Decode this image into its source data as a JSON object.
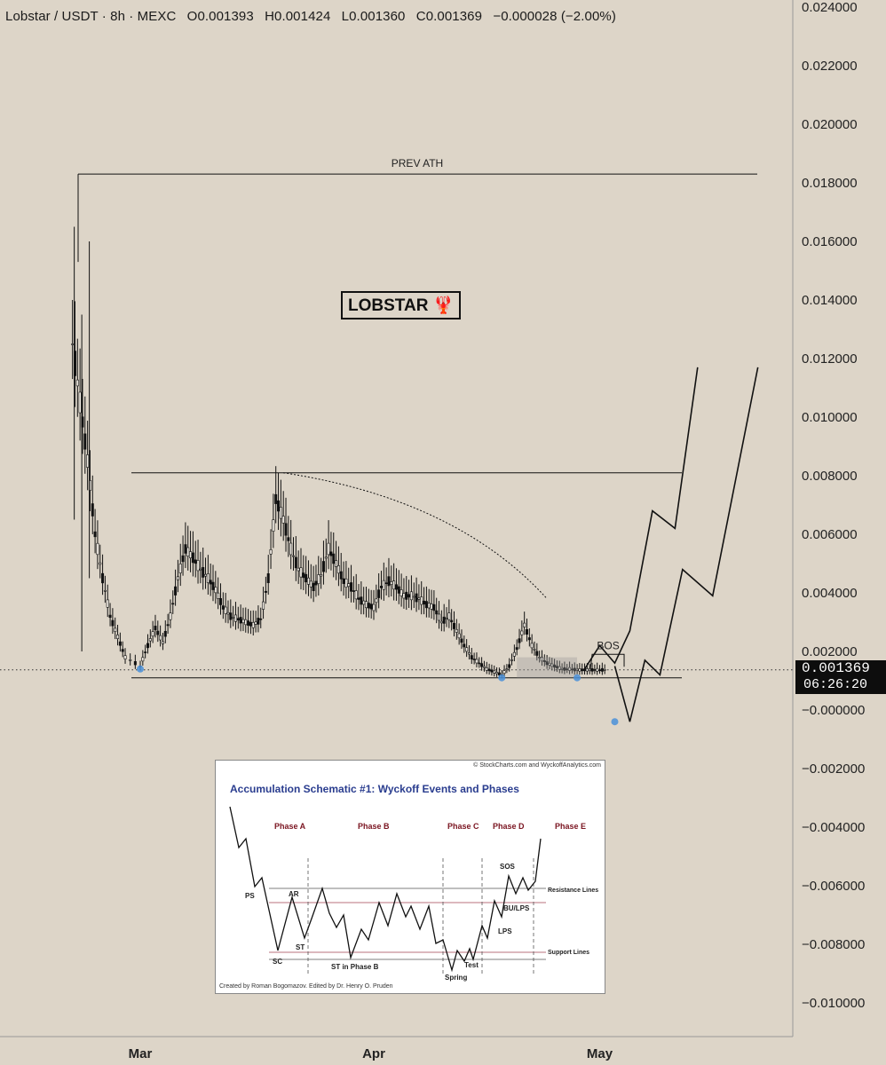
{
  "header": {
    "pair": "Lobstar / USDT · 8h · MEXC",
    "open": "O0.001393",
    "high": "H0.001424",
    "low": "L0.001360",
    "close": "C0.001369",
    "change": "−0.000028 (−2.00%)"
  },
  "price_tag": {
    "price": "0.001369",
    "countdown": "06:26:20"
  },
  "annotations": {
    "prev_ath": "PREV ATH",
    "bos": "BOS",
    "label": "LOBSTAR 🦞"
  },
  "colors": {
    "background": "#ddd5c8",
    "candles": "#111111",
    "marker": "#4a90d9",
    "inset_title": "#2a3d8f",
    "phase_labels": "#7a1420"
  },
  "chart_data": {
    "type": "line",
    "title": "Lobstar / USDT · 8h · MEXC",
    "xlabel": "",
    "ylabel": "",
    "ylim": [
      -0.0108,
      0.0242
    ],
    "y_ticks": [
      "0.024000",
      "0.022000",
      "0.020000",
      "0.018000",
      "0.016000",
      "0.014000",
      "0.012000",
      "0.010000",
      "0.008000",
      "0.006000",
      "0.004000",
      "0.002000",
      "−0.000000",
      "−0.002000",
      "−0.004000",
      "−0.006000",
      "−0.008000",
      "−0.010000"
    ],
    "x_ticks": [
      "Mar",
      "Apr",
      "May"
    ],
    "series": [
      {
        "name": "",
        "x": [
          "Feb 21",
          "Feb 22",
          "Feb 23",
          "Feb 24",
          "Feb 25",
          "Feb 26",
          "Feb 27",
          "Feb 28",
          "Mar 1",
          "Mar 2",
          "Mar 3",
          "Mar 4",
          "Mar 5",
          "Mar 6",
          "Mar 7",
          "Mar 8",
          "Mar 9",
          "Mar 10",
          "Mar 11",
          "Mar 12",
          "Mar 13",
          "Mar 14",
          "Mar 15",
          "Mar 16",
          "Mar 17",
          "Mar 18",
          "Mar 19",
          "Mar 20",
          "Mar 21",
          "Mar 22",
          "Mar 23",
          "Mar 24",
          "Mar 25",
          "Mar 26",
          "Mar 27",
          "Mar 28",
          "Mar 29",
          "Mar 30",
          "Mar 31",
          "Apr 1",
          "Apr 2",
          "Apr 3",
          "Apr 4",
          "Apr 5",
          "Apr 6",
          "Apr 7",
          "Apr 8",
          "Apr 9",
          "Apr 10",
          "Apr 11",
          "Apr 12",
          "Apr 13",
          "Apr 14",
          "Apr 15",
          "Apr 16",
          "Apr 17",
          "Apr 18",
          "Apr 19",
          "Apr 20",
          "Apr 21",
          "Apr 22",
          "Apr 23",
          "Apr 24",
          "Apr 25",
          "Apr 26",
          "Apr 27",
          "Apr 28",
          "Apr 29",
          "Apr 30",
          "May 1",
          "May 2"
        ],
        "values": [
          0.0125,
          0.0105,
          0.0085,
          0.006,
          0.0045,
          0.0032,
          0.0025,
          0.0018,
          0.0015,
          0.0022,
          0.0028,
          0.0023,
          0.0032,
          0.0045,
          0.0055,
          0.0052,
          0.0048,
          0.0045,
          0.0041,
          0.0035,
          0.0032,
          0.0031,
          0.003,
          0.0029,
          0.0031,
          0.0045,
          0.0072,
          0.0065,
          0.0055,
          0.0048,
          0.0045,
          0.0042,
          0.0046,
          0.0055,
          0.005,
          0.0044,
          0.0042,
          0.0038,
          0.0036,
          0.0035,
          0.0042,
          0.0044,
          0.0042,
          0.0039,
          0.0039,
          0.0038,
          0.0036,
          0.0035,
          0.003,
          0.0032,
          0.0027,
          0.0022,
          0.0018,
          0.0016,
          0.0014,
          0.0013,
          0.0012,
          0.0015,
          0.0021,
          0.0029,
          0.0022,
          0.0018,
          0.0016,
          0.0015,
          0.0014,
          0.0014,
          0.00137,
          0.00137,
          0.00137,
          0.00137,
          0.00137
        ]
      }
    ],
    "levels": [
      {
        "label": "PREV ATH",
        "value": 0.0183
      },
      {
        "label": "",
        "value": 0.0081
      },
      {
        "label": "",
        "value": 0.0011
      }
    ],
    "projections": [
      {
        "x": [
          "Apr 29",
          "May 1",
          "May 3",
          "May 5",
          "May 8",
          "May 11",
          "May 14"
        ],
        "values": [
          0.0014,
          0.0022,
          0.0016,
          0.0027,
          0.0068,
          0.0062,
          0.0117
        ]
      },
      {
        "x": [
          "May 3",
          "May 5",
          "May 7",
          "May 9",
          "May 12",
          "May 16",
          "May 22"
        ],
        "values": [
          0.0015,
          -0.0004,
          0.0017,
          0.0012,
          0.0048,
          0.0039,
          0.0117
        ]
      }
    ]
  },
  "inset": {
    "credit": "© StockCharts.com and WyckoffAnalytics.com",
    "title": "Accumulation Schematic #1: Wyckoff Events and Phases",
    "footer": "Created by Roman Bogomazov. Edited by Dr. Henry O. Pruden",
    "phases": [
      "Phase A",
      "Phase B",
      "Phase C",
      "Phase D",
      "Phase E"
    ],
    "events": [
      "PS",
      "SC",
      "AR",
      "ST",
      "ST in Phase B",
      "Spring",
      "Test",
      "SOS",
      "BU/LPS",
      "LPS"
    ],
    "resistance_label": "Resistance Lines",
    "support_label": "Support Lines"
  }
}
